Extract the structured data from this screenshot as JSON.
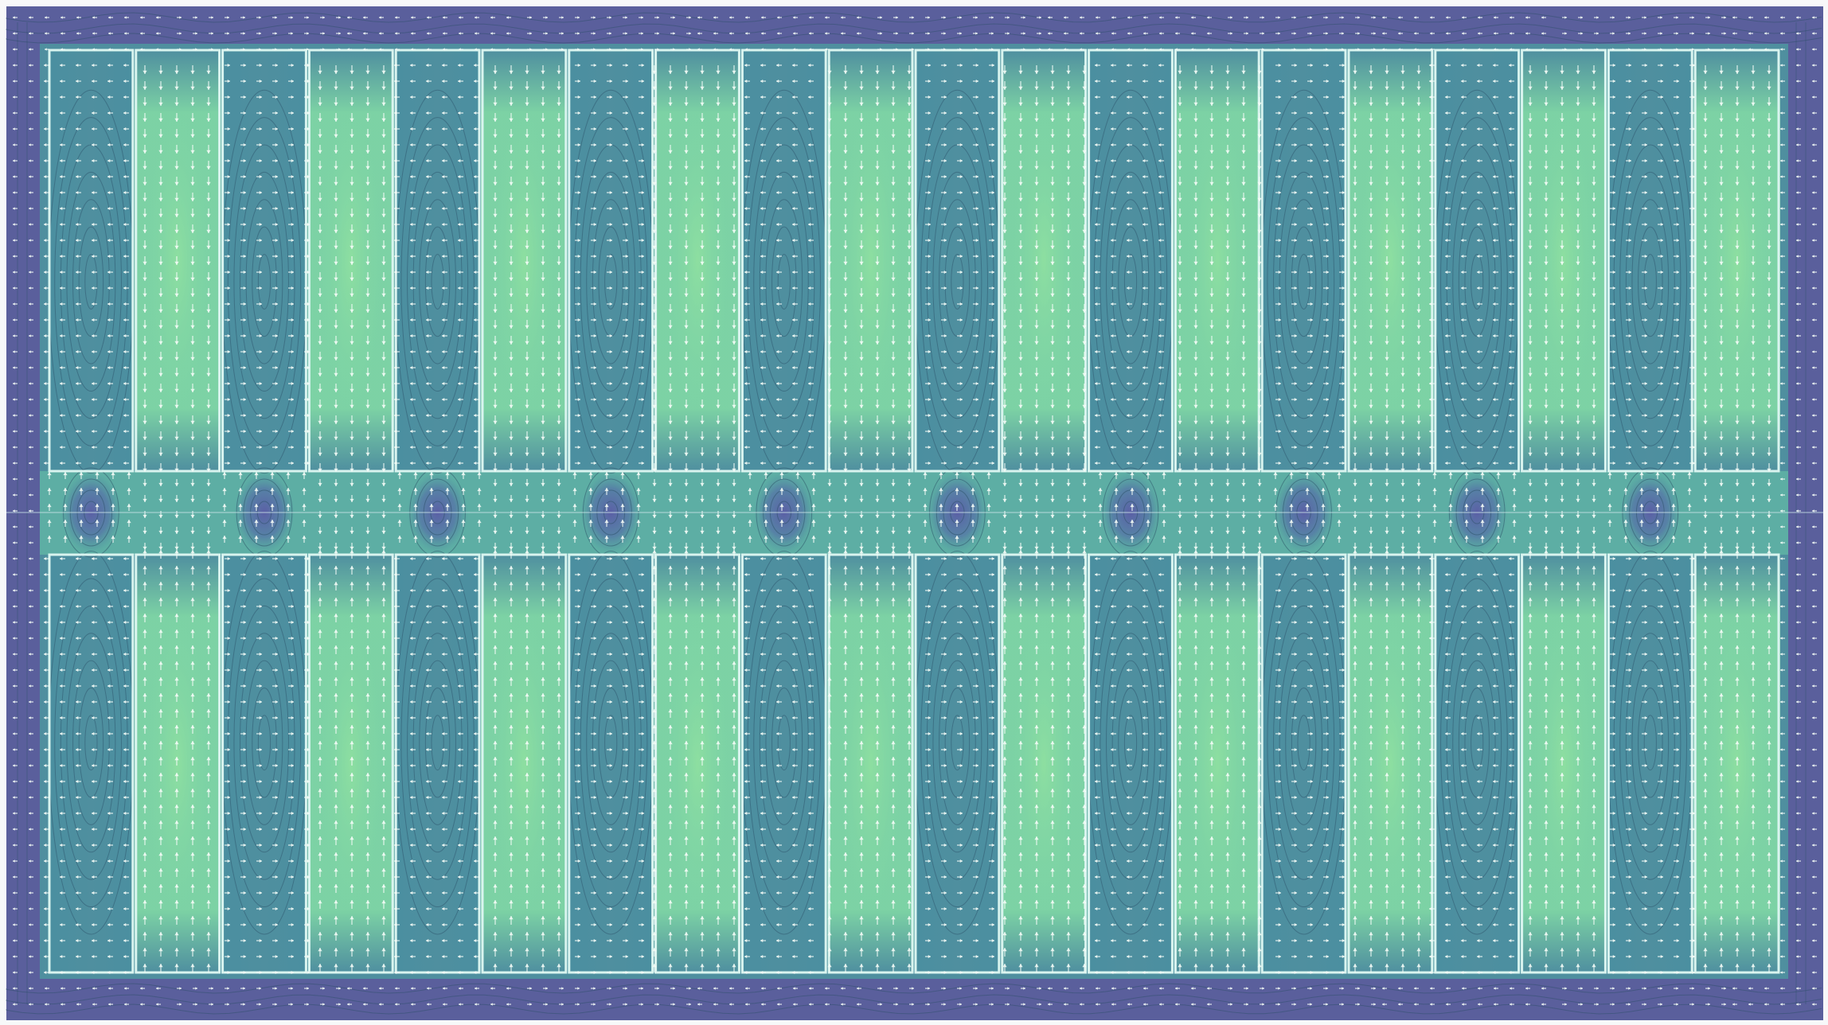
{
  "figure": {
    "kind": "magnetic field simulation (Halbach-like array of alternating magnetized bars)",
    "caption": ""
  },
  "colors": {
    "background_frame": "#f7f8f9",
    "field_low": "#5a5f9c",
    "field_mid": "#4f8f9f",
    "field_high": "#7fd6a5",
    "magnet_outline": "#d9f4ef",
    "arrow": "#f4fbf7",
    "contour": "#2a4e66",
    "midline": "#cfe7ea"
  },
  "structure": {
    "rows": 2,
    "columns_per_row": 20,
    "magnets_per_row": 20
  },
  "row_labels": [
    "top-row",
    "bottom-row"
  ],
  "icons": {
    "arrow": "arrow-icon",
    "magnet": "magnet-block-icon"
  }
}
